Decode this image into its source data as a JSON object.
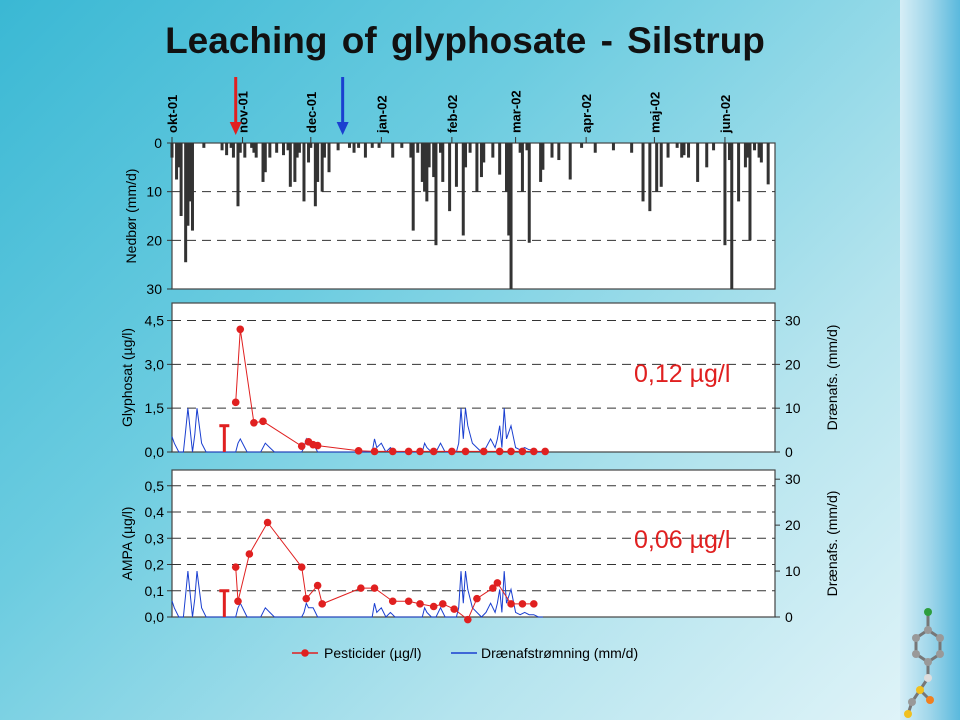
{
  "title": "Leaching of glyphosate - Silstrup",
  "chart_data": [
    {
      "type": "bar",
      "name": "precipitation",
      "ylabel": "Nedbør (mm/d)",
      "ylim": [
        30,
        0
      ],
      "yticks": [
        "0",
        "10",
        "20",
        "30"
      ],
      "months": [
        "okt-01",
        "nov-01",
        "dec-01",
        "jan-02",
        "feb-02",
        "mar-02",
        "apr-02",
        "maj-02",
        "jun-02"
      ],
      "month_days": [
        0,
        31,
        61,
        92,
        123,
        151,
        182,
        212,
        243
      ],
      "arrows": [
        {
          "day": 28,
          "color": "#e02020"
        },
        {
          "day": 75,
          "color": "#1a3fd0"
        }
      ],
      "x": [
        0,
        2,
        3,
        4,
        6,
        7,
        8,
        9,
        14,
        22,
        24,
        26,
        27,
        29,
        30,
        32,
        35,
        36,
        37,
        40,
        41,
        43,
        46,
        49,
        51,
        52,
        54,
        55,
        56,
        58,
        60,
        61,
        63,
        64,
        66,
        67,
        69,
        73,
        78,
        80,
        82,
        85,
        88,
        91,
        97,
        101,
        105,
        106,
        108,
        110,
        111,
        112,
        113,
        115,
        116,
        118,
        119,
        122,
        125,
        128,
        129,
        131,
        134,
        136,
        137,
        141,
        144,
        147,
        148,
        149,
        153,
        154,
        156,
        157,
        162,
        163,
        167,
        170,
        175,
        180,
        186,
        194,
        202,
        207,
        210,
        213,
        215,
        218,
        222,
        224,
        225,
        227,
        231,
        235,
        238,
        243,
        245,
        246,
        249,
        252,
        253,
        254,
        256,
        258,
        259,
        262
      ],
      "values": [
        3,
        7.5,
        5,
        15,
        24.5,
        17,
        12,
        18,
        1,
        1.5,
        2.5,
        1,
        3,
        13,
        2,
        3,
        1,
        2,
        3,
        8,
        6,
        3,
        2,
        2.5,
        1.5,
        9,
        8,
        3,
        2,
        12,
        4,
        1,
        13,
        8,
        10,
        3,
        6,
        1.5,
        1,
        2,
        1,
        3,
        1,
        1,
        3,
        1,
        3,
        18,
        2,
        8,
        10,
        12,
        5,
        7,
        21,
        2,
        8,
        14,
        9,
        19,
        5,
        2,
        10,
        7,
        4,
        3,
        6.5,
        10,
        19,
        30,
        2,
        10,
        1.5,
        20.5,
        8,
        5.5,
        3,
        3.5,
        7.5,
        1,
        2,
        1.5,
        2,
        12,
        14,
        10,
        9,
        3,
        1,
        3,
        2.5,
        3,
        8,
        5,
        1.5,
        21,
        3.5,
        30,
        12,
        5,
        3,
        20,
        1.5,
        3,
        4,
        8.5
      ]
    },
    {
      "type": "line",
      "name": "glyphosate",
      "ylabel": "Glyphosat (µg/l)",
      "y2label": "Drænafs. (mm/d)",
      "ylim": [
        0,
        5.1
      ],
      "y2lim": [
        0,
        34
      ],
      "yticks": [
        "0,0",
        "1,5",
        "3,0",
        "4,5"
      ],
      "y2ticks": [
        "0",
        "10",
        "20",
        "30"
      ],
      "annotation": "0,12 µg/l",
      "detection_limit_day": 23,
      "detection_limit_value": 0.9,
      "series": [
        {
          "name": "Pesticider (µg/l)",
          "x": [
            28,
            30,
            36,
            40,
            57,
            60,
            62,
            64,
            82,
            89,
            97,
            104,
            109,
            115,
            123,
            129,
            137,
            144,
            149,
            154,
            159,
            164
          ],
          "values": [
            1.7,
            4.2,
            1.0,
            1.05,
            0.2,
            0.35,
            0.25,
            0.22,
            0.04,
            0.02,
            0.02,
            0.02,
            0.02,
            0.02,
            0.02,
            0.02,
            0.02,
            0.02,
            0.02,
            0.02,
            0.02,
            0.02
          ]
        },
        {
          "name": "Drænafstrømning (mm/d)",
          "x": [
            0,
            1,
            3,
            5,
            6,
            7,
            8,
            9,
            10,
            11,
            13,
            15,
            17,
            19,
            21,
            22,
            24,
            26,
            28,
            29,
            30,
            32,
            33,
            34,
            36,
            37,
            39,
            41,
            43,
            45,
            47,
            49,
            51,
            53,
            55,
            57,
            58,
            59,
            60,
            62,
            63,
            64,
            66,
            68,
            70,
            72,
            74,
            76,
            78,
            80,
            82,
            84,
            86,
            88,
            89,
            90,
            92,
            94,
            96,
            98,
            100,
            102,
            104,
            106,
            108,
            109,
            110,
            111,
            112,
            114,
            116,
            118,
            120,
            122,
            124,
            125,
            126,
            127,
            128,
            129,
            130,
            132,
            134,
            136,
            138,
            140,
            142,
            143,
            144,
            145,
            146,
            147,
            149,
            151,
            153,
            155,
            157,
            159,
            161,
            163
          ],
          "values": [
            3.5,
            2.0,
            0,
            0,
            5.0,
            10.0,
            5.0,
            0,
            4.0,
            10.0,
            2.0,
            0,
            0,
            0,
            0,
            0,
            0,
            0,
            0,
            2.0,
            3.0,
            1.0,
            0,
            0,
            0,
            0,
            0,
            2.0,
            1.0,
            0,
            0,
            0,
            0,
            0,
            0,
            0,
            1.0,
            3.0,
            2.0,
            2.0,
            1.0,
            0,
            0,
            0,
            0,
            0,
            0,
            0,
            0,
            0,
            0,
            0,
            0,
            0,
            3.0,
            1.0,
            2.0,
            0,
            1.0,
            0,
            0,
            0,
            0,
            0,
            0,
            0,
            0,
            2.0,
            1.0,
            0,
            0,
            2.0,
            0,
            0,
            0,
            0,
            2.0,
            10.0,
            3.0,
            10.0,
            6.0,
            2.0,
            1.0,
            0,
            1.0,
            3.0,
            1.0,
            3.0,
            6.0,
            1.0,
            10.0,
            3.0,
            6.0,
            1.0,
            0.5,
            1.0,
            0.5,
            0.5,
            0,
            0
          ]
        }
      ]
    },
    {
      "type": "line",
      "name": "ampa",
      "ylabel": "AMPA (µg/l)",
      "y2label": "Drænafs. (mm/d)",
      "ylim": [
        0,
        0.56
      ],
      "y2lim": [
        0,
        32
      ],
      "yticks": [
        "0,0",
        "0,1",
        "0,2",
        "0,3",
        "0,4",
        "0,5"
      ],
      "y2ticks": [
        "0",
        "10",
        "20",
        "30"
      ],
      "annotation": "0,06 µg/l",
      "detection_limit_day": 23,
      "detection_limit_value": 0.1,
      "series": [
        {
          "name": "Pesticider (µg/l)",
          "x": [
            28,
            29,
            34,
            42,
            57,
            59,
            64,
            66,
            83,
            89,
            97,
            104,
            109,
            115,
            119,
            124,
            130,
            134,
            141,
            143,
            149,
            154,
            159
          ],
          "values": [
            0.19,
            0.06,
            0.24,
            0.36,
            0.19,
            0.07,
            0.12,
            0.05,
            0.11,
            0.11,
            0.06,
            0.06,
            0.05,
            0.04,
            0.05,
            0.03,
            -0.01,
            0.07,
            0.11,
            0.13,
            0.05,
            0.05,
            0.05
          ]
        },
        {
          "name": "Drænafstrømning (mm/d)",
          "x": [
            0,
            1,
            3,
            5,
            6,
            7,
            8,
            9,
            10,
            11,
            13,
            15,
            17,
            19,
            21,
            22,
            24,
            26,
            28,
            29,
            30,
            32,
            33,
            34,
            36,
            37,
            39,
            41,
            43,
            45,
            47,
            49,
            51,
            53,
            55,
            57,
            58,
            59,
            60,
            62,
            63,
            64,
            66,
            68,
            70,
            72,
            74,
            76,
            78,
            80,
            82,
            84,
            86,
            88,
            89,
            90,
            92,
            94,
            96,
            98,
            100,
            102,
            104,
            106,
            108,
            109,
            110,
            111,
            112,
            114,
            116,
            118,
            120,
            122,
            124,
            125,
            126,
            127,
            128,
            129,
            130,
            132,
            134,
            136,
            138,
            140,
            142,
            143,
            144,
            145,
            146,
            147,
            149,
            151,
            153,
            155,
            157,
            159,
            161,
            163
          ],
          "values": [
            3.5,
            2.0,
            0,
            0,
            5.0,
            10.0,
            5.0,
            0,
            4.0,
            10.0,
            2.0,
            0,
            0,
            0,
            0,
            0,
            0,
            0,
            0,
            2.0,
            3.0,
            1.0,
            0,
            0,
            0,
            0,
            0,
            2.0,
            1.0,
            0,
            0,
            0,
            0,
            0,
            0,
            0,
            1.0,
            3.0,
            2.0,
            2.0,
            1.0,
            0,
            0,
            0,
            0,
            0,
            0,
            0,
            0,
            0,
            0,
            0,
            0,
            0,
            3.0,
            1.0,
            2.0,
            0,
            1.0,
            0,
            0,
            0,
            0,
            0,
            0,
            0,
            0,
            2.0,
            1.0,
            0,
            0,
            2.0,
            0,
            0,
            0,
            0,
            2.0,
            10.0,
            3.0,
            10.0,
            6.0,
            2.0,
            1.0,
            0,
            1.0,
            3.0,
            1.0,
            3.0,
            6.0,
            1.0,
            10.0,
            3.0,
            6.0,
            1.0,
            0.5,
            1.0,
            0.5,
            0.5,
            0,
            0
          ]
        }
      ]
    }
  ],
  "legend": {
    "items": [
      {
        "label": "Pesticider (µg/l)",
        "color": "#e02020",
        "marker": "circle"
      },
      {
        "label": "Drænafstrømning (mm/d)",
        "color": "#1a3fd0",
        "marker": "line"
      }
    ],
    "placement": "bottom-center"
  },
  "colors": {
    "bars": "#333333",
    "pesticide": "#e02020",
    "drain": "#1a3fd0",
    "annotation": "#e02020"
  },
  "decoration": {
    "icon": "molecule-icon"
  }
}
